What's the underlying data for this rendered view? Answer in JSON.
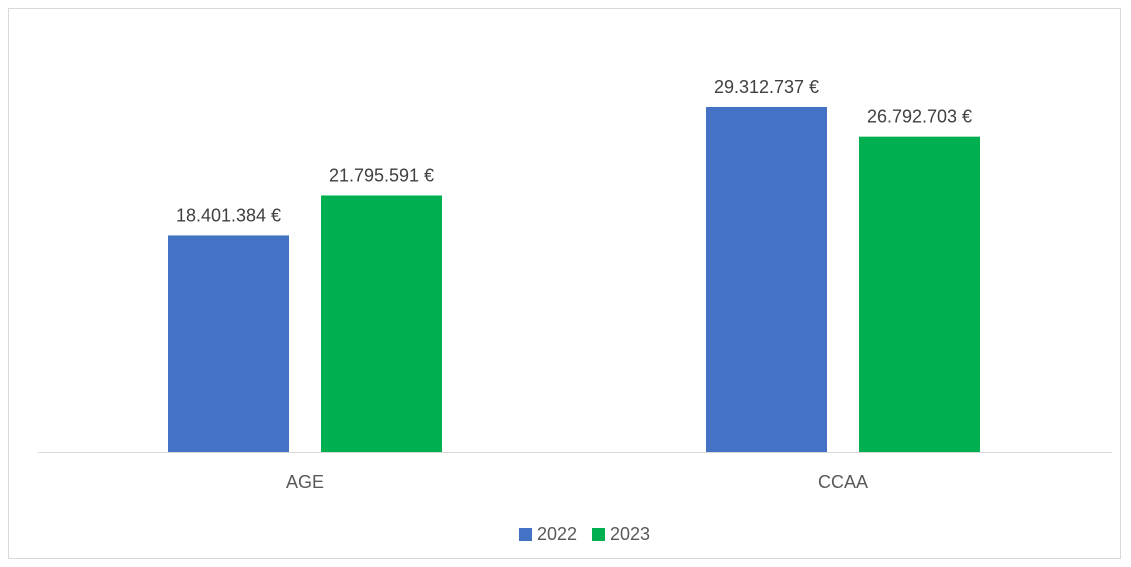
{
  "chart_data": {
    "type": "bar",
    "title": "",
    "xlabel": "",
    "ylabel": "",
    "categories": [
      "AGE",
      "CCAA"
    ],
    "series": [
      {
        "name": "2022",
        "color": "#4472c4",
        "values": [
          18401384,
          29312737
        ],
        "labels": [
          "18.401.384 €",
          "29.312.737 €"
        ]
      },
      {
        "name": "2023",
        "color": "#00b050",
        "values": [
          21795591,
          26792703
        ],
        "labels": [
          "21.795.591 €",
          "26.792.703 €"
        ]
      }
    ],
    "ylim": [
      0,
      35000000
    ],
    "grid": false,
    "legend": "bottom-center"
  }
}
